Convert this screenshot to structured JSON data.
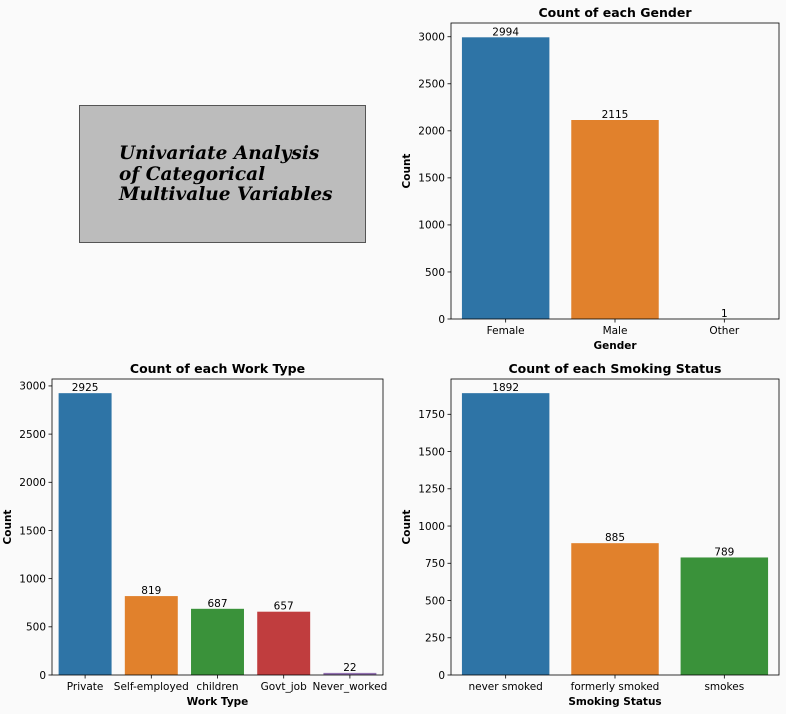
{
  "heading": {
    "text": "Univariate Analysis\nof Categorical\nMultivalue Variables"
  },
  "chart_data": [
    {
      "type": "bar",
      "title": "Count of each Gender",
      "xlabel": "Gender",
      "ylabel": "Count",
      "categories": [
        "Female",
        "Male",
        "Other"
      ],
      "values": [
        2994,
        2115,
        1
      ],
      "colors": [
        "#2e74a6",
        "#e1812c",
        "#3a923a"
      ],
      "ylim": [
        0,
        3146
      ],
      "yticks": [
        0,
        500,
        1000,
        1500,
        2000,
        2500,
        3000
      ],
      "grid": false,
      "legend": "none"
    },
    {
      "type": "bar",
      "title": "Count of each Work Type",
      "xlabel": "Work Type",
      "ylabel": "Count",
      "categories": [
        "Private",
        "Self-employed",
        "children",
        "Govt_job",
        "Never_worked"
      ],
      "values": [
        2925,
        819,
        687,
        657,
        22
      ],
      "colors": [
        "#2e74a6",
        "#e1812c",
        "#3a923a",
        "#c03d3e",
        "#9372b2"
      ],
      "ylim": [
        0,
        3072
      ],
      "yticks": [
        0,
        500,
        1000,
        1500,
        2000,
        2500,
        3000
      ],
      "grid": false,
      "legend": "none"
    },
    {
      "type": "bar",
      "title": "Count of each Smoking Status",
      "xlabel": "Smoking Status",
      "ylabel": "Count",
      "categories": [
        "never smoked",
        "formerly smoked",
        "smokes"
      ],
      "values": [
        1892,
        885,
        789
      ],
      "colors": [
        "#2e74a6",
        "#e1812c",
        "#3a923a"
      ],
      "ylim": [
        0,
        1987
      ],
      "yticks": [
        0,
        250,
        500,
        750,
        1000,
        1250,
        1500,
        1750
      ],
      "grid": false,
      "legend": "none"
    }
  ]
}
